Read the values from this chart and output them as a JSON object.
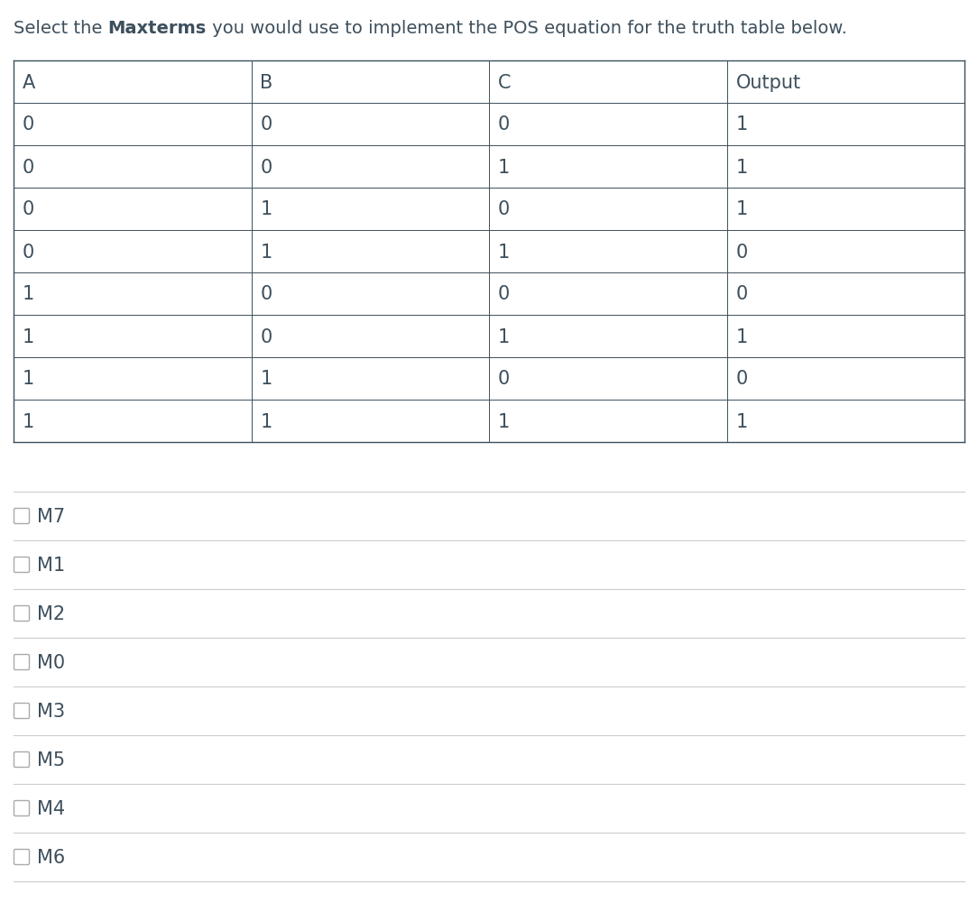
{
  "title_part1": "Select the ",
  "title_bold": "Maxterms",
  "title_part2": " you would use to implement the POS equation for the truth table below.",
  "table_headers": [
    "A",
    "B",
    "C",
    "Output"
  ],
  "table_rows": [
    [
      "0",
      "0",
      "0",
      "1"
    ],
    [
      "0",
      "0",
      "1",
      "1"
    ],
    [
      "0",
      "1",
      "0",
      "1"
    ],
    [
      "0",
      "1",
      "1",
      "0"
    ],
    [
      "1",
      "0",
      "0",
      "0"
    ],
    [
      "1",
      "0",
      "1",
      "1"
    ],
    [
      "1",
      "1",
      "0",
      "0"
    ],
    [
      "1",
      "1",
      "1",
      "1"
    ]
  ],
  "checkboxes": [
    "M7",
    "M1",
    "M2",
    "M0",
    "M3",
    "M5",
    "M4",
    "M6"
  ],
  "bg_color": "#ffffff",
  "text_color": "#3d4f5c",
  "table_line_color": "#3d4f5c",
  "sep_color": "#cccccc",
  "title_fontsize": 14,
  "table_fontsize": 15,
  "checkbox_fontsize": 15,
  "fig_width": 10.84,
  "fig_height": 10.12,
  "dpi": 100
}
